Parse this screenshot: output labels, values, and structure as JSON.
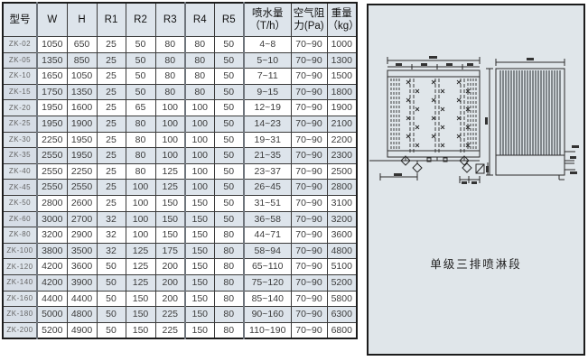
{
  "table": {
    "headers": [
      "型号",
      "W",
      "H",
      "R1",
      "R2",
      "R3",
      "R4",
      "R5",
      "喷水量\n（T/h）",
      "空气阻\n力(Pa)",
      "重量\n（kg）"
    ],
    "rows": [
      [
        "ZK-02",
        "1050",
        "650",
        "25",
        "50",
        "80",
        "80",
        "50",
        "4~8",
        "70~90",
        "1000"
      ],
      [
        "ZK-05",
        "1350",
        "850",
        "25",
        "50",
        "80",
        "80",
        "50",
        "5~10",
        "70~90",
        "1300"
      ],
      [
        "ZK-10",
        "1650",
        "1050",
        "25",
        "50",
        "80",
        "80",
        "50",
        "7~11",
        "70~90",
        "1500"
      ],
      [
        "ZK-15",
        "1750",
        "1350",
        "25",
        "50",
        "80",
        "80",
        "50",
        "9~15",
        "70~90",
        "1800"
      ],
      [
        "ZK-20",
        "1950",
        "1600",
        "25",
        "65",
        "100",
        "100",
        "50",
        "12~19",
        "70~90",
        "1900"
      ],
      [
        "ZK-25",
        "1950",
        "1900",
        "25",
        "80",
        "100",
        "100",
        "50",
        "14~23",
        "70~90",
        "2100"
      ],
      [
        "ZK-30",
        "2250",
        "1950",
        "25",
        "80",
        "100",
        "100",
        "50",
        "19~31",
        "70~90",
        "2200"
      ],
      [
        "ZK-35",
        "2550",
        "1950",
        "25",
        "80",
        "100",
        "100",
        "50",
        "21~35",
        "70~90",
        "2300"
      ],
      [
        "ZK-40",
        "2550",
        "2250",
        "25",
        "80",
        "125",
        "100",
        "50",
        "23~37",
        "70~90",
        "2500"
      ],
      [
        "ZK-45",
        "2550",
        "2550",
        "25",
        "100",
        "125",
        "100",
        "50",
        "26~45",
        "70~90",
        "2800"
      ],
      [
        "ZK-50",
        "2800",
        "2600",
        "25",
        "100",
        "150",
        "150",
        "50",
        "31~51",
        "70~90",
        "3100"
      ],
      [
        "ZK-60",
        "3000",
        "2700",
        "32",
        "100",
        "150",
        "150",
        "50",
        "36~58",
        "70~90",
        "3200"
      ],
      [
        "ZK-80",
        "3200",
        "2900",
        "32",
        "100",
        "150",
        "150",
        "80",
        "44~71",
        "70~90",
        "3600"
      ],
      [
        "ZK-100",
        "3800",
        "3500",
        "32",
        "125",
        "175",
        "150",
        "80",
        "58~94",
        "70~90",
        "4800"
      ],
      [
        "ZK-120",
        "4200",
        "3600",
        "50",
        "125",
        "200",
        "150",
        "80",
        "65~110",
        "70~90",
        "5100"
      ],
      [
        "ZK-140",
        "4200",
        "3900",
        "50",
        "125",
        "200",
        "150",
        "80",
        "75~120",
        "70~90",
        "5200"
      ],
      [
        "ZK-160",
        "4400",
        "4400",
        "50",
        "150",
        "200",
        "150",
        "80",
        "85~140",
        "70~90",
        "5800"
      ],
      [
        "ZK-180",
        "5000",
        "4800",
        "50",
        "150",
        "225",
        "150",
        "80",
        "90~160",
        "70~90",
        "6300"
      ],
      [
        "ZK-200",
        "5200",
        "4900",
        "50",
        "150",
        "225",
        "150",
        "80",
        "110~190",
        "70~90",
        "6800"
      ]
    ]
  },
  "panel": {
    "caption": "单级三排喷淋段"
  },
  "colors": {
    "row_shade": "#dde4eb",
    "panel_bg": "#e0e6ea",
    "border": "#1c1c1c"
  }
}
